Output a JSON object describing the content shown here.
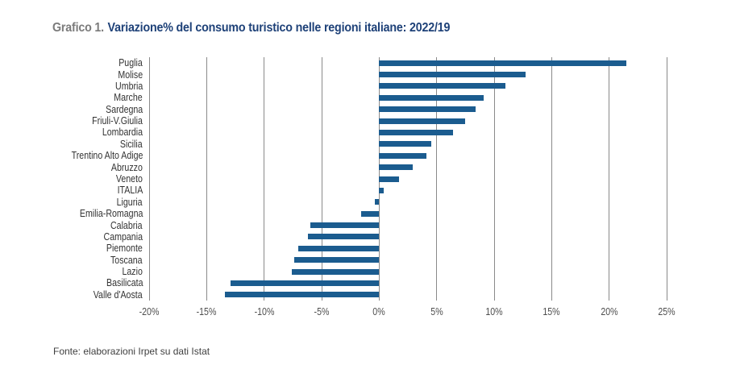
{
  "title": {
    "prefix": "Grafico 1.",
    "text": "Variazione% del consumo turistico nelle regioni italiane: 2022/19"
  },
  "source": "Fonte: elaborazioni Irpet su dati Istat",
  "colors": {
    "bar": "#1b5c8f",
    "title_accent": "#1e4178",
    "title_prefix": "#7b7b7b",
    "gridline": "#8a8a8a",
    "region_label": "#333333",
    "tick_label": "#4d4d4d"
  },
  "chart_data": {
    "type": "bar",
    "orientation": "horizontal",
    "title": "Variazione% del consumo turistico nelle regioni italiane: 2022/19",
    "xlabel": "",
    "ylabel": "",
    "xlim": [
      -20,
      25
    ],
    "grid": true,
    "categories": [
      "Puglia",
      "Molise",
      "Umbria",
      "Marche",
      "Sardegna",
      "Friuli-V.Giulia",
      "Lombardia",
      "Sicilia",
      "Trentino Alto Adige",
      "Abruzzo",
      "Veneto",
      "ITALIA",
      "Liguria",
      "Emilia-Romagna",
      "Calabria",
      "Campania",
      "Piemonte",
      "Toscana",
      "Lazio",
      "Basilicata",
      "Valle d'Aosta"
    ],
    "values": [
      21.5,
      12.7,
      11.0,
      9.1,
      8.4,
      7.5,
      6.4,
      4.5,
      4.1,
      2.9,
      1.7,
      0.4,
      -0.4,
      -1.6,
      -6.0,
      -6.2,
      -7.0,
      -7.4,
      -7.6,
      -12.9,
      -13.4
    ],
    "ticks": [
      {
        "value": -20,
        "label": "-20%"
      },
      {
        "value": -15,
        "label": "-15%"
      },
      {
        "value": -10,
        "label": "-10%"
      },
      {
        "value": -5,
        "label": "-5%"
      },
      {
        "value": 0,
        "label": "0%"
      },
      {
        "value": 5,
        "label": "5%"
      },
      {
        "value": 10,
        "label": "10%"
      },
      {
        "value": 15,
        "label": "15%"
      },
      {
        "value": 20,
        "label": "20%"
      },
      {
        "value": 25,
        "label": "25%"
      }
    ]
  }
}
